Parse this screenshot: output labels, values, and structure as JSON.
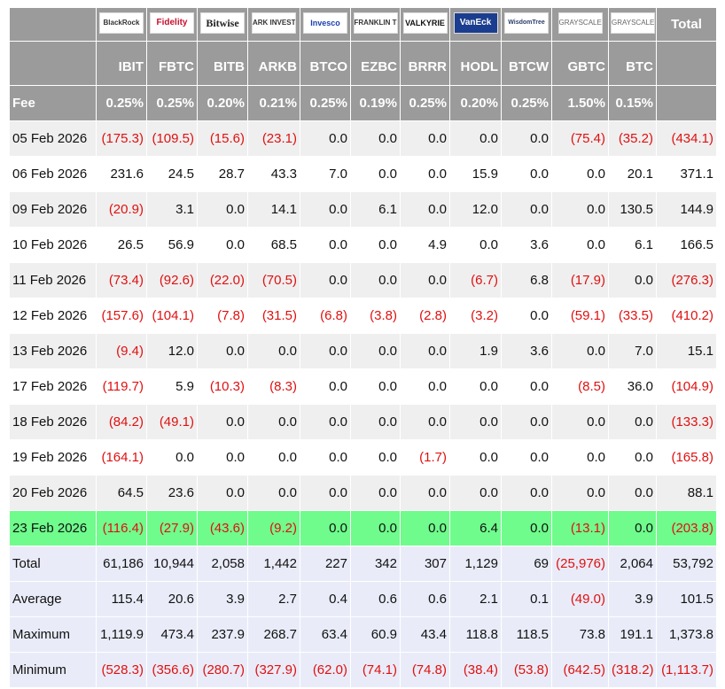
{
  "header": {
    "logos": [
      "BlackRock",
      "Fidelity",
      "Bitwise",
      "ARK INVEST",
      "Invesco",
      "FRANKLIN TEMPLETON",
      "VALKYRIE",
      "VanEck",
      "WisdomTree",
      "GRAYSCALE",
      "GRAYSCALE"
    ],
    "total_label": "Total",
    "tickers": [
      "IBIT",
      "FBTC",
      "BITB",
      "ARKB",
      "BTCO",
      "EZBC",
      "BRRR",
      "HODL",
      "BTCW",
      "GBTC",
      "BTC"
    ],
    "fee_label": "Fee",
    "fees": [
      "0.25%",
      "0.25%",
      "0.20%",
      "0.21%",
      "0.25%",
      "0.19%",
      "0.25%",
      "0.20%",
      "0.25%",
      "1.50%",
      "0.15%"
    ]
  },
  "table": {
    "rows": [
      [
        "05 Feb 2026",
        "(175.3)",
        "(109.5)",
        "(15.6)",
        "(23.1)",
        "0.0",
        "0.0",
        "0.0",
        "0.0",
        "0.0",
        "(75.4)",
        "(35.2)",
        "(434.1)"
      ],
      [
        "06 Feb 2026",
        "231.6",
        "24.5",
        "28.7",
        "43.3",
        "7.0",
        "0.0",
        "0.0",
        "15.9",
        "0.0",
        "0.0",
        "20.1",
        "371.1"
      ],
      [
        "09 Feb 2026",
        "(20.9)",
        "3.1",
        "0.0",
        "14.1",
        "0.0",
        "6.1",
        "0.0",
        "12.0",
        "0.0",
        "0.0",
        "130.5",
        "144.9"
      ],
      [
        "10 Feb 2026",
        "26.5",
        "56.9",
        "0.0",
        "68.5",
        "0.0",
        "0.0",
        "4.9",
        "0.0",
        "3.6",
        "0.0",
        "6.1",
        "166.5"
      ],
      [
        "11 Feb 2026",
        "(73.4)",
        "(92.6)",
        "(22.0)",
        "(70.5)",
        "0.0",
        "0.0",
        "0.0",
        "(6.7)",
        "6.8",
        "(17.9)",
        "0.0",
        "(276.3)"
      ],
      [
        "12 Feb 2026",
        "(157.6)",
        "(104.1)",
        "(7.8)",
        "(31.5)",
        "(6.8)",
        "(3.8)",
        "(2.8)",
        "(3.2)",
        "0.0",
        "(59.1)",
        "(33.5)",
        "(410.2)"
      ],
      [
        "13 Feb 2026",
        "(9.4)",
        "12.0",
        "0.0",
        "0.0",
        "0.0",
        "0.0",
        "0.0",
        "1.9",
        "3.6",
        "0.0",
        "7.0",
        "15.1"
      ],
      [
        "17 Feb 2026",
        "(119.7)",
        "5.9",
        "(10.3)",
        "(8.3)",
        "0.0",
        "0.0",
        "0.0",
        "0.0",
        "0.0",
        "(8.5)",
        "36.0",
        "(104.9)"
      ],
      [
        "18 Feb 2026",
        "(84.2)",
        "(49.1)",
        "0.0",
        "0.0",
        "0.0",
        "0.0",
        "0.0",
        "0.0",
        "0.0",
        "0.0",
        "0.0",
        "(133.3)"
      ],
      [
        "19 Feb 2026",
        "(164.1)",
        "0.0",
        "0.0",
        "0.0",
        "0.0",
        "0.0",
        "(1.7)",
        "0.0",
        "0.0",
        "0.0",
        "0.0",
        "(165.8)"
      ],
      [
        "20 Feb 2026",
        "64.5",
        "23.6",
        "0.0",
        "0.0",
        "0.0",
        "0.0",
        "0.0",
        "0.0",
        "0.0",
        "0.0",
        "0.0",
        "88.1"
      ],
      [
        "23 Feb 2026",
        "(116.4)",
        "(27.9)",
        "(43.6)",
        "(9.2)",
        "0.0",
        "0.0",
        "0.0",
        "6.4",
        "0.0",
        "(13.1)",
        "0.0",
        "(203.8)"
      ]
    ],
    "summary": [
      [
        "Total",
        "61,186",
        "10,944",
        "2,058",
        "1,442",
        "227",
        "342",
        "307",
        "1,129",
        "69",
        "(25,976)",
        "2,064",
        "53,792"
      ],
      [
        "Average",
        "115.4",
        "20.6",
        "3.9",
        "2.7",
        "0.4",
        "0.6",
        "0.6",
        "2.1",
        "0.1",
        "(49.0)",
        "3.9",
        "101.5"
      ],
      [
        "Maximum",
        "1,119.9",
        "473.4",
        "237.9",
        "268.7",
        "63.4",
        "60.9",
        "43.4",
        "118.8",
        "118.5",
        "73.8",
        "191.1",
        "1,373.8"
      ],
      [
        "Minimum",
        "(528.3)",
        "(356.6)",
        "(280.7)",
        "(327.9)",
        "(62.0)",
        "(74.1)",
        "(74.8)",
        "(38.4)",
        "(53.8)",
        "(642.5)",
        "(318.2)",
        "(1,113.7)"
      ]
    ]
  }
}
